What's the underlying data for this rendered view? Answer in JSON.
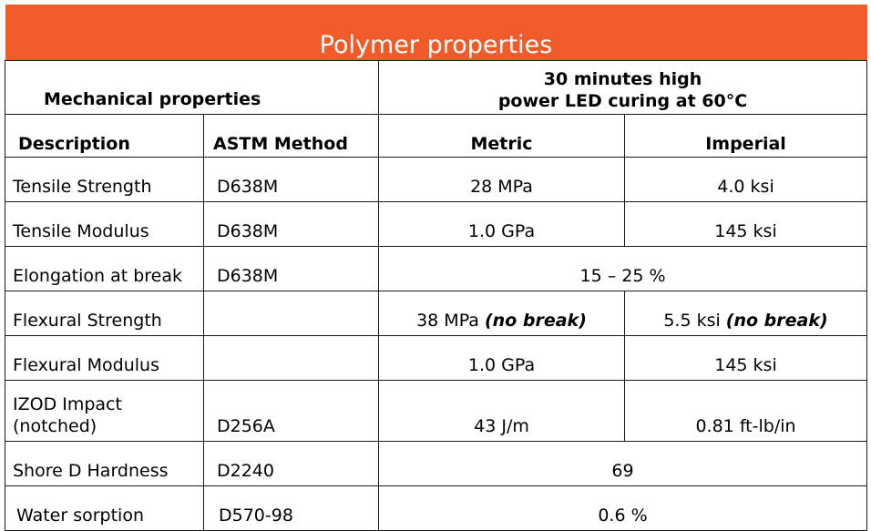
{
  "title": "Polymer properties",
  "header": {
    "mech_label": "Mechanical properties",
    "curing_line1": "30 minutes high",
    "curing_line2": "power LED curing at 60°C"
  },
  "columns": {
    "description": "Description",
    "astm": "ASTM Method",
    "metric": "Metric",
    "imperial": "Imperial"
  },
  "rows": [
    {
      "description": "Tensile Strength",
      "astm": "D638M",
      "metric": "28 MPa",
      "imperial": "4.0 ksi"
    },
    {
      "description": "Tensile Modulus",
      "astm": "D638M",
      "metric": "1.0 GPa",
      "imperial": "145 ksi"
    },
    {
      "description": "Elongation at break",
      "astm": "D638M",
      "merged": "15 – 25 %"
    },
    {
      "description": "Flexural Strength",
      "astm": "",
      "metric": "38 MPa",
      "metric_note": "(no break)",
      "imperial": "5.5 ksi",
      "imperial_note": "(no break)"
    },
    {
      "description": "Flexural Modulus",
      "astm": "",
      "metric": "1.0 GPa",
      "imperial": "145 ksi"
    },
    {
      "description_line1": "IZOD Impact",
      "description_line2": "(notched)",
      "astm": "D256A",
      "metric": "43 J/m",
      "imperial": "0.81 ft-lb/in"
    },
    {
      "description": "Shore D Hardness",
      "astm": "D2240",
      "merged": "69"
    },
    {
      "description": "Water sorption",
      "astm": "D570-98",
      "merged": "0.6 %"
    }
  ]
}
